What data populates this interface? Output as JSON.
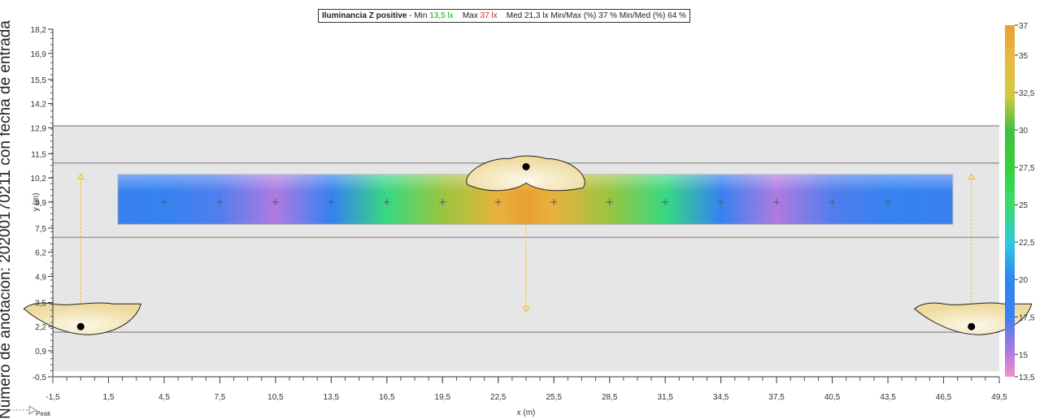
{
  "rotated_note": "Número de anotación: 20200170211 con fecha de entrada",
  "peak_label": "Peak",
  "title": {
    "name": "Iluminancia  Z positive",
    "sep": "  -  Min ",
    "min": "13,5 lx",
    "max_label": "Max ",
    "max": "37 lx",
    "rest": "Med 21,3 lx    Min/Max (%) 37 %    Min/Med (%) 64 %"
  },
  "chart_data": {
    "type": "heatmap",
    "xlabel": "x (m)",
    "ylabel": "y (m)",
    "xlim": [
      -1.5,
      49.5
    ],
    "ylim": [
      -0.5,
      18.2
    ],
    "x_ticks": [
      -1.5,
      1.5,
      4.5,
      7.5,
      10.5,
      13.5,
      16.5,
      19.5,
      22.5,
      25.5,
      28.5,
      31.5,
      34.5,
      37.5,
      40.5,
      43.5,
      46.5,
      49.5
    ],
    "x_tick_labels": [
      "-1,5",
      "1,5",
      "4,5",
      "7,5",
      "10,5",
      "13,5",
      "16,5",
      "19,5",
      "22,5",
      "25,5",
      "28,5",
      "31,5",
      "34,5",
      "37,5",
      "40,5",
      "43,5",
      "46,5",
      "49,5"
    ],
    "y_ticks": [
      -0.5,
      0.9,
      2.2,
      3.5,
      4.9,
      6.2,
      7.5,
      8.9,
      10.2,
      11.5,
      12.9,
      14.2,
      15.5,
      16.9,
      18.2
    ],
    "y_tick_labels": [
      "-0,5",
      "0,9",
      "2,2",
      "3,5",
      "4,9",
      "6,2",
      "7,5",
      "8,9",
      "10,2",
      "11,5",
      "12,9",
      "14,2",
      "15,5",
      "16,9",
      "18,2"
    ],
    "colorbar_ticks": [
      13.5,
      15,
      17.5,
      20,
      22.5,
      25,
      27.5,
      30,
      32.5,
      35,
      37
    ],
    "colorbar_tick_labels": [
      "13,5",
      "15",
      "17,5",
      "20",
      "22,5",
      "25",
      "27,5",
      "30",
      "32,5",
      "35",
      "37"
    ],
    "colorbar_range": [
      13.5,
      37
    ],
    "colors": {
      "13.5": "#f48fc8",
      "15": "#b07ae0",
      "17.5": "#3a7ff0",
      "20": "#2e86f0",
      "22.5": "#30c8e0",
      "25": "#3adc6a",
      "27.5": "#32d23a",
      "30": "#40c040",
      "32.5": "#d4c840",
      "35": "#e8b840",
      "37": "#e8a030"
    },
    "road_band_y": [
      -0.2,
      13.0
    ],
    "lane_lines_y": [
      1.9,
      7.0,
      11.0,
      13.0
    ],
    "grid_area": {
      "x": [
        2.0,
        47.0
      ],
      "y": [
        7.7,
        10.4
      ]
    },
    "grid_points_x": [
      4.5,
      7.5,
      10.5,
      13.5,
      16.5,
      19.5,
      22.5,
      25.5,
      28.5,
      31.5,
      34.5,
      37.5,
      40.5,
      43.5
    ],
    "grid_points_y": 8.9,
    "illuminance_profile": [
      {
        "x": 2.0,
        "lx": 18.0
      },
      {
        "x": 4.5,
        "lx": 18.5
      },
      {
        "x": 7.5,
        "lx": 17.0
      },
      {
        "x": 10.5,
        "lx": 15.0
      },
      {
        "x": 13.5,
        "lx": 18.5
      },
      {
        "x": 16.5,
        "lx": 24.5
      },
      {
        "x": 19.5,
        "lx": 31.5
      },
      {
        "x": 22.5,
        "lx": 35.5
      },
      {
        "x": 24.0,
        "lx": 37.0
      },
      {
        "x": 25.5,
        "lx": 35.5
      },
      {
        "x": 28.5,
        "lx": 31.5
      },
      {
        "x": 31.5,
        "lx": 24.5
      },
      {
        "x": 34.5,
        "lx": 18.5
      },
      {
        "x": 37.5,
        "lx": 15.0
      },
      {
        "x": 40.5,
        "lx": 17.0
      },
      {
        "x": 43.5,
        "lx": 18.5
      },
      {
        "x": 47.0,
        "lx": 18.0
      }
    ],
    "luminaires": [
      {
        "x": 0.0,
        "y": 2.2,
        "aim_to_y": 10.4
      },
      {
        "x": 24.0,
        "y": 10.8,
        "aim_to_y": 3.0
      },
      {
        "x": 48.0,
        "y": 2.2,
        "aim_to_y": 10.4
      }
    ]
  }
}
